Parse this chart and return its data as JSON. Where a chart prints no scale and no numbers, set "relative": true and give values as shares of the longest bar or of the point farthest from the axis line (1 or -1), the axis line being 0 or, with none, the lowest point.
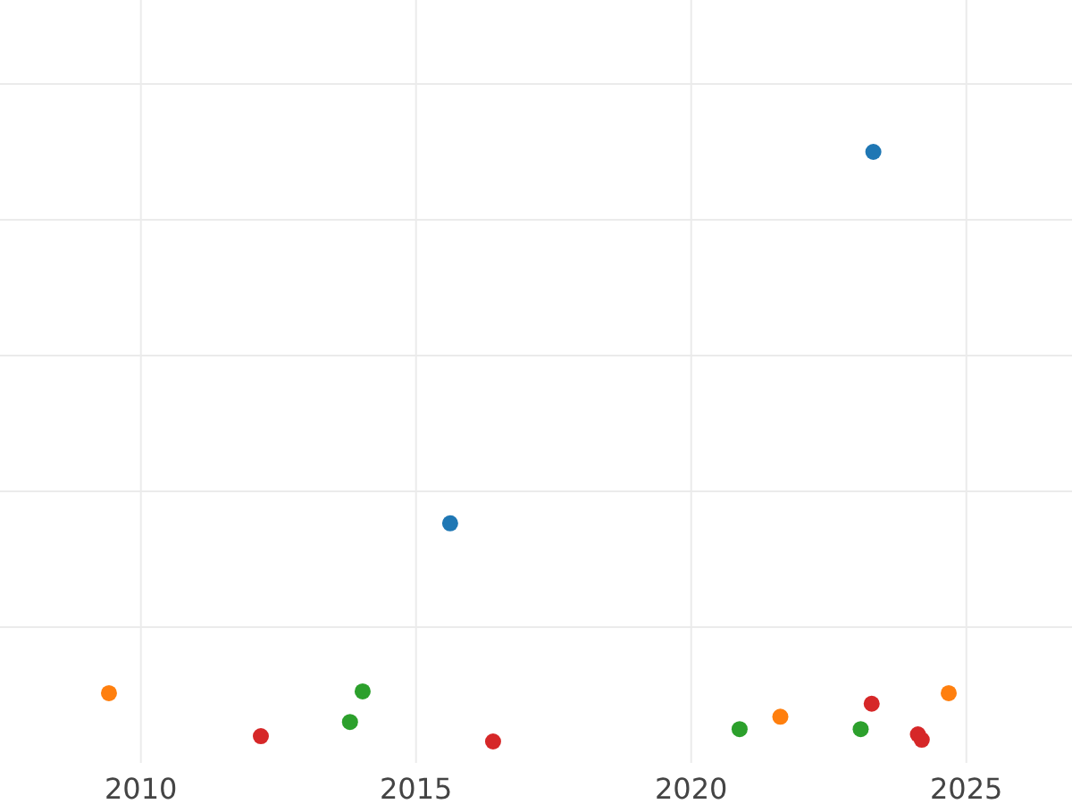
{
  "chart_data": {
    "type": "scatter",
    "relative": true,
    "xlim": [
      2007.44,
      2026.92
    ],
    "xticks": [
      2010,
      2015,
      2020,
      2025
    ],
    "grid": true,
    "marker": "circle",
    "tick_labels": "x",
    "series": [
      {
        "color": "#1f77b4",
        "x": [
          2023.31,
          2015.62
        ],
        "values": [
          1,
          0.37
        ]
      },
      {
        "color": "#ff7f0e",
        "x": [
          2009.42,
          2021.62,
          2024.68
        ],
        "values": [
          0.082,
          0.042,
          0.082
        ]
      },
      {
        "color": "#2ca02c",
        "x": [
          2014.03,
          2013.8,
          2020.88,
          2023.08
        ],
        "values": [
          0.085,
          0.033,
          0.021,
          0.021
        ]
      },
      {
        "color": "#d62728",
        "x": [
          2012.18,
          2016.4,
          2023.28,
          2024.12,
          2024.19
        ],
        "values": [
          0.009,
          0,
          0.064,
          0.012,
          0.003
        ]
      }
    ]
  }
}
